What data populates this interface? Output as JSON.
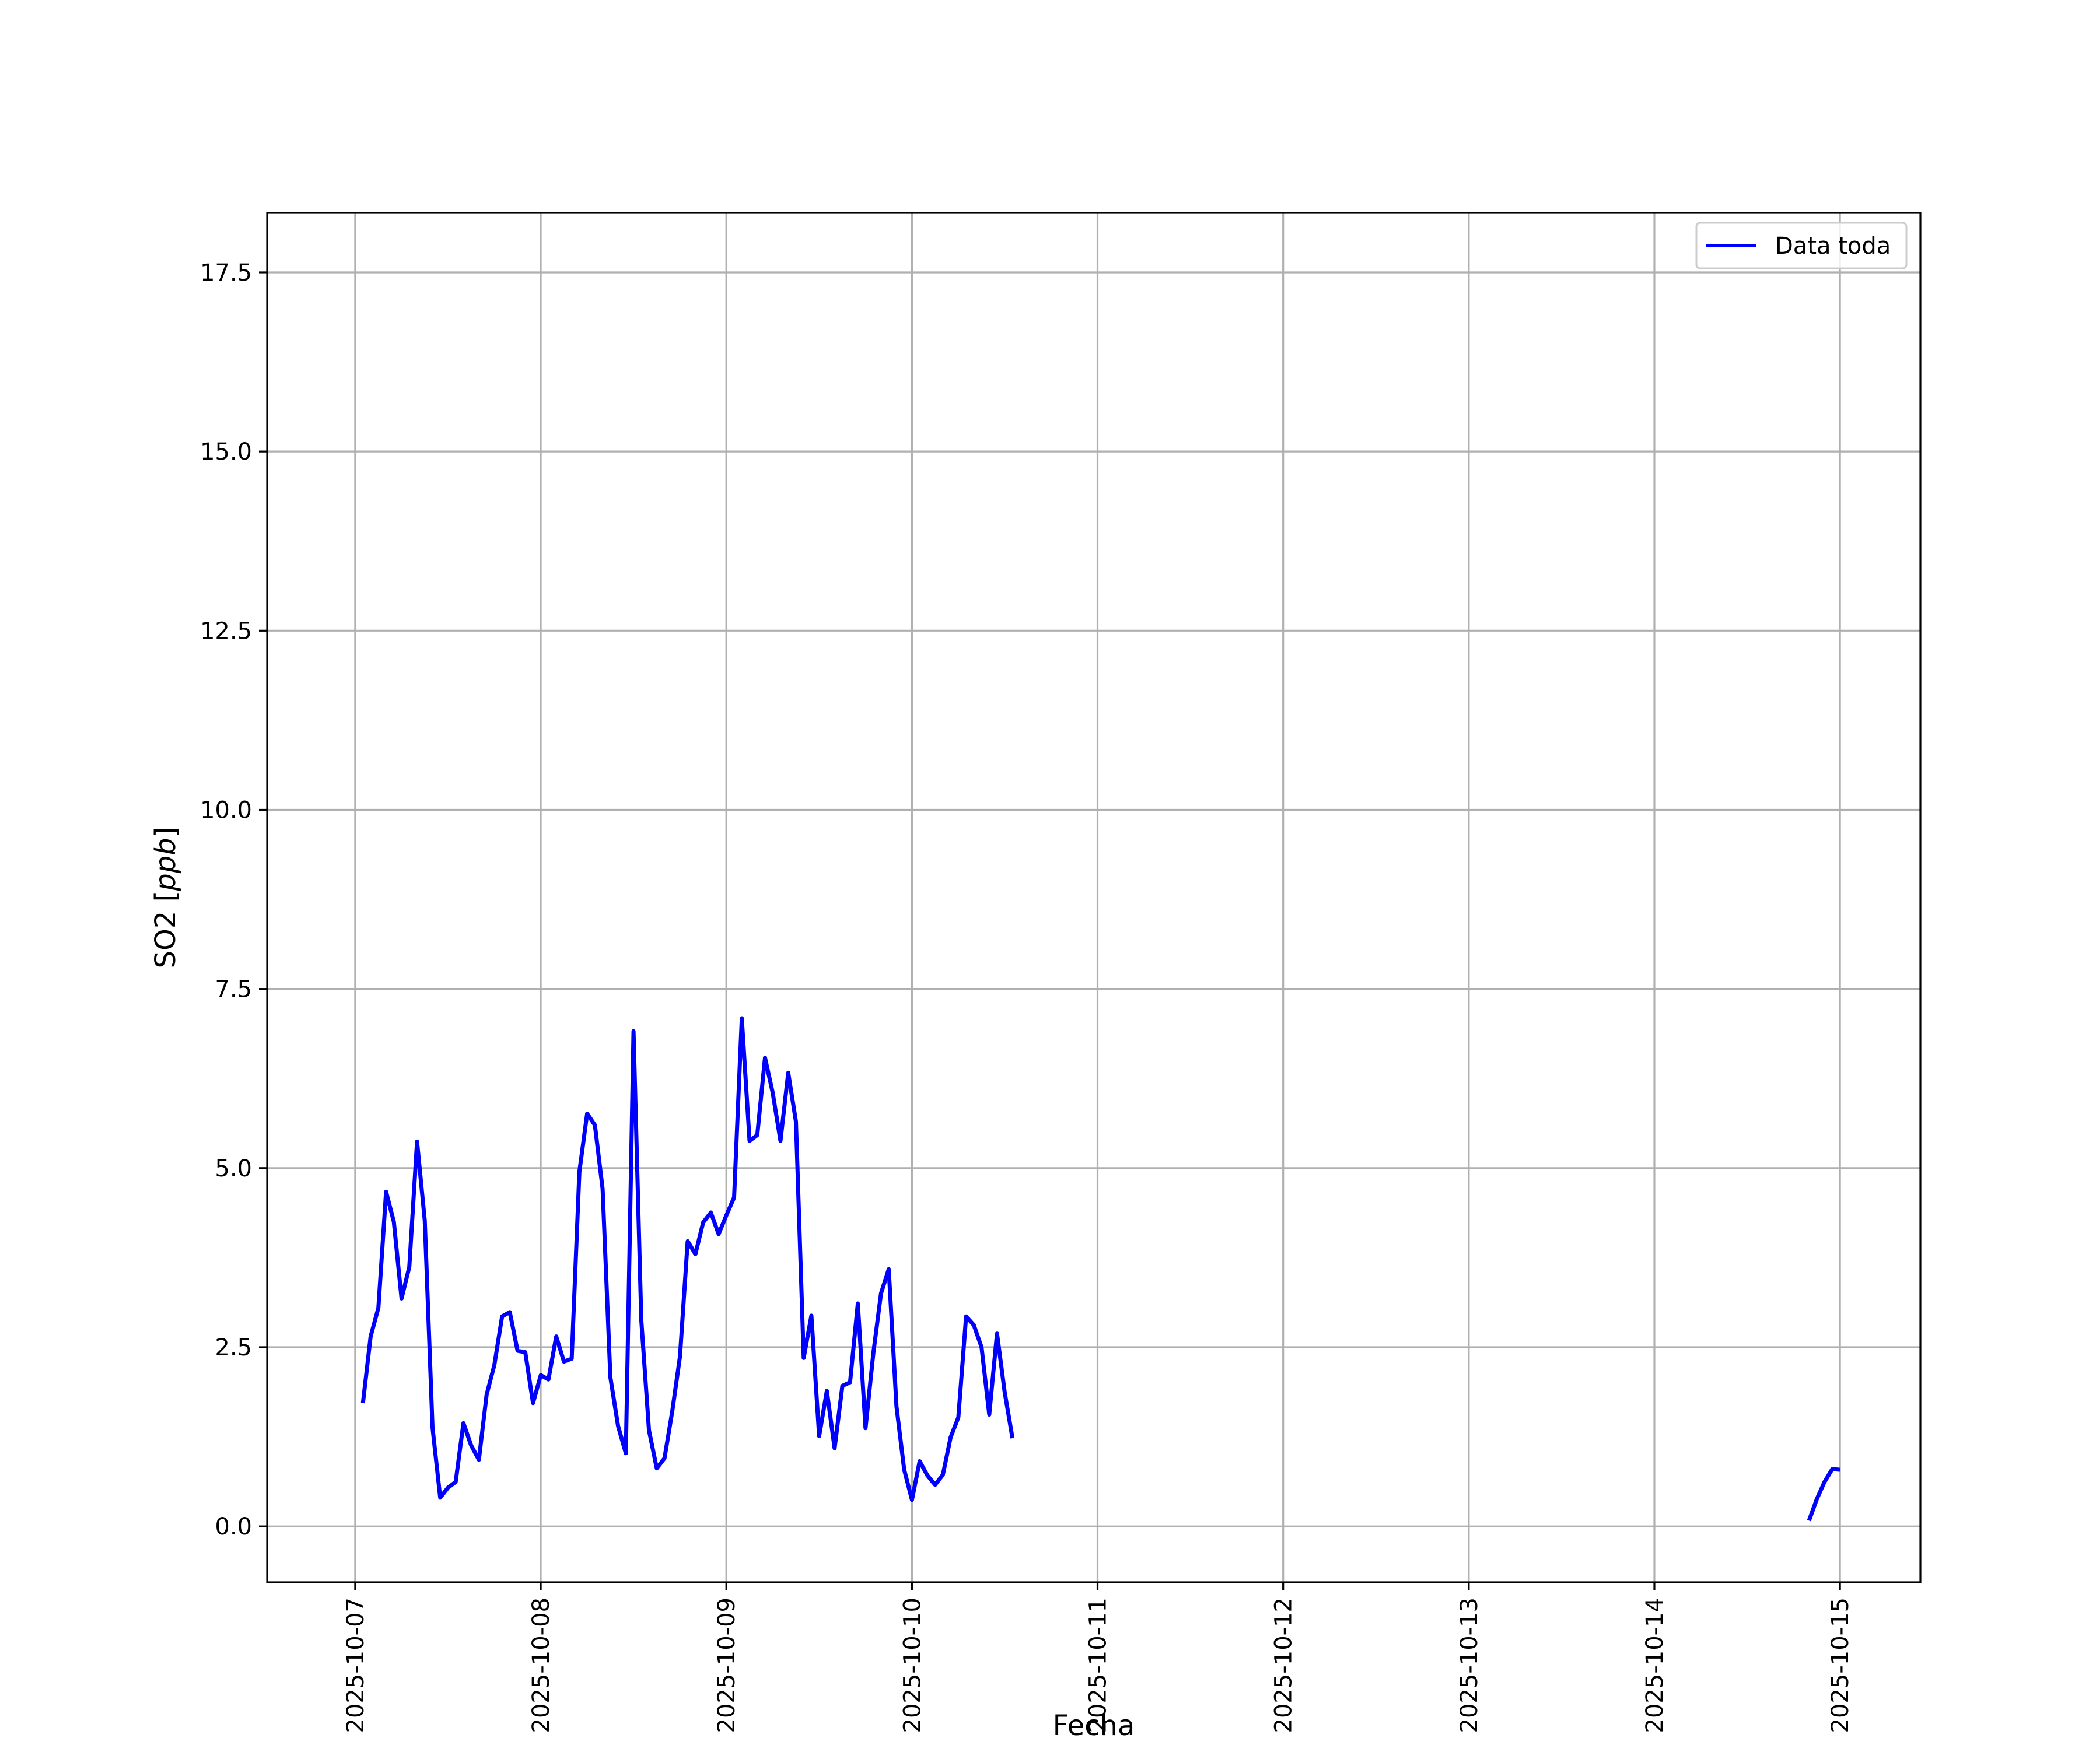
{
  "chart_data": {
    "type": "line",
    "title": "",
    "xlabel": "Fecha",
    "ylabel": "SO2",
    "ylabel_unit": "ppb",
    "x_tick_labels": [
      "2025-10-07",
      "2025-10-08",
      "2025-10-09",
      "2025-10-10",
      "2025-10-11",
      "2025-10-12",
      "2025-10-13",
      "2025-10-14",
      "2025-10-15"
    ],
    "y_tick_labels": [
      "0.0",
      "2.5",
      "5.0",
      "7.5",
      "10.0",
      "12.5",
      "15.0",
      "17.5"
    ],
    "xlim": [
      "2025-10-06 12:37",
      "2025-10-15 10:24"
    ],
    "ylim": [
      -0.78,
      18.33
    ],
    "grid": true,
    "legend_position": "upper right",
    "series": [
      {
        "name": "Data toda",
        "color": "#0000ff",
        "segments": [
          [
            [
              "2025-10-07 01:00",
              1.72
            ],
            [
              "2025-10-07 02:00",
              2.65
            ],
            [
              "2025-10-07 03:00",
              3.05
            ],
            [
              "2025-10-07 04:00",
              4.67
            ],
            [
              "2025-10-07 05:00",
              4.25
            ],
            [
              "2025-10-07 06:00",
              3.18
            ],
            [
              "2025-10-07 07:00",
              3.62
            ],
            [
              "2025-10-07 08:00",
              5.37
            ],
            [
              "2025-10-07 09:00",
              4.27
            ],
            [
              "2025-10-07 10:00",
              1.38
            ],
            [
              "2025-10-07 11:00",
              0.4
            ],
            [
              "2025-10-07 12:00",
              0.54
            ],
            [
              "2025-10-07 13:00",
              0.62
            ],
            [
              "2025-10-07 14:00",
              1.44
            ],
            [
              "2025-10-07 15:00",
              1.13
            ],
            [
              "2025-10-07 16:00",
              0.93
            ],
            [
              "2025-10-07 17:00",
              1.84
            ],
            [
              "2025-10-07 18:00",
              2.25
            ],
            [
              "2025-10-07 19:00",
              2.93
            ],
            [
              "2025-10-07 20:00",
              2.99
            ],
            [
              "2025-10-07 21:00",
              2.45
            ],
            [
              "2025-10-07 22:00",
              2.43
            ],
            [
              "2025-10-07 23:00",
              1.72
            ],
            [
              "2025-10-08 00:00",
              2.11
            ],
            [
              "2025-10-08 01:00",
              2.05
            ],
            [
              "2025-10-08 02:00",
              2.65
            ],
            [
              "2025-10-08 03:00",
              2.3
            ],
            [
              "2025-10-08 04:00",
              2.34
            ],
            [
              "2025-10-08 05:00",
              4.95
            ],
            [
              "2025-10-08 06:00",
              5.76
            ],
            [
              "2025-10-08 07:00",
              5.6
            ],
            [
              "2025-10-08 08:00",
              4.71
            ],
            [
              "2025-10-08 09:00",
              2.08
            ],
            [
              "2025-10-08 10:00",
              1.4
            ],
            [
              "2025-10-08 11:00",
              1.02
            ],
            [
              "2025-10-08 12:00",
              6.91
            ],
            [
              "2025-10-08 13:00",
              2.88
            ],
            [
              "2025-10-08 14:00",
              1.34
            ],
            [
              "2025-10-08 15:00",
              0.81
            ],
            [
              "2025-10-08 16:00",
              0.95
            ],
            [
              "2025-10-08 17:00",
              1.6
            ],
            [
              "2025-10-08 18:00",
              2.37
            ],
            [
              "2025-10-08 19:00",
              3.98
            ],
            [
              "2025-10-08 20:00",
              3.8
            ],
            [
              "2025-10-08 21:00",
              4.24
            ],
            [
              "2025-10-08 22:00",
              4.38
            ],
            [
              "2025-10-08 23:00",
              4.08
            ],
            [
              "2025-10-09 00:00",
              4.34
            ],
            [
              "2025-10-09 01:00",
              4.59
            ],
            [
              "2025-10-09 02:00",
              7.09
            ],
            [
              "2025-10-09 03:00",
              5.38
            ],
            [
              "2025-10-09 04:00",
              5.46
            ],
            [
              "2025-10-09 05:00",
              6.54
            ],
            [
              "2025-10-09 06:00",
              6.05
            ],
            [
              "2025-10-09 07:00",
              5.38
            ],
            [
              "2025-10-09 08:00",
              6.33
            ],
            [
              "2025-10-09 09:00",
              5.65
            ],
            [
              "2025-10-09 10:00",
              2.35
            ],
            [
              "2025-10-09 11:00",
              2.94
            ],
            [
              "2025-10-09 12:00",
              1.26
            ],
            [
              "2025-10-09 13:00",
              1.89
            ],
            [
              "2025-10-09 14:00",
              1.09
            ],
            [
              "2025-10-09 15:00",
              1.96
            ],
            [
              "2025-10-09 16:00",
              2.01
            ],
            [
              "2025-10-09 17:00",
              3.11
            ],
            [
              "2025-10-09 18:00",
              1.37
            ],
            [
              "2025-10-09 19:00",
              2.41
            ],
            [
              "2025-10-09 20:00",
              3.25
            ],
            [
              "2025-10-09 21:00",
              3.59
            ],
            [
              "2025-10-09 22:00",
              1.67
            ],
            [
              "2025-10-09 23:00",
              0.79
            ],
            [
              "2025-10-10 00:00",
              0.37
            ],
            [
              "2025-10-10 01:00",
              0.91
            ],
            [
              "2025-10-10 02:00",
              0.71
            ],
            [
              "2025-10-10 03:00",
              0.58
            ],
            [
              "2025-10-10 04:00",
              0.72
            ],
            [
              "2025-10-10 05:00",
              1.24
            ],
            [
              "2025-10-10 06:00",
              1.52
            ],
            [
              "2025-10-10 07:00",
              2.93
            ],
            [
              "2025-10-10 08:00",
              2.81
            ],
            [
              "2025-10-10 09:00",
              2.5
            ],
            [
              "2025-10-10 10:00",
              1.56
            ],
            [
              "2025-10-10 11:00",
              2.69
            ],
            [
              "2025-10-10 12:00",
              1.87
            ],
            [
              "2025-10-10 13:00",
              1.23
            ]
          ],
          [
            [
              "2025-10-14 20:00",
              0.08
            ],
            [
              "2025-10-14 21:00",
              0.38
            ],
            [
              "2025-10-14 22:00",
              0.62
            ],
            [
              "2025-10-14 23:00",
              0.8
            ],
            [
              "2025-10-15 00:00",
              0.79
            ]
          ]
        ]
      }
    ]
  }
}
